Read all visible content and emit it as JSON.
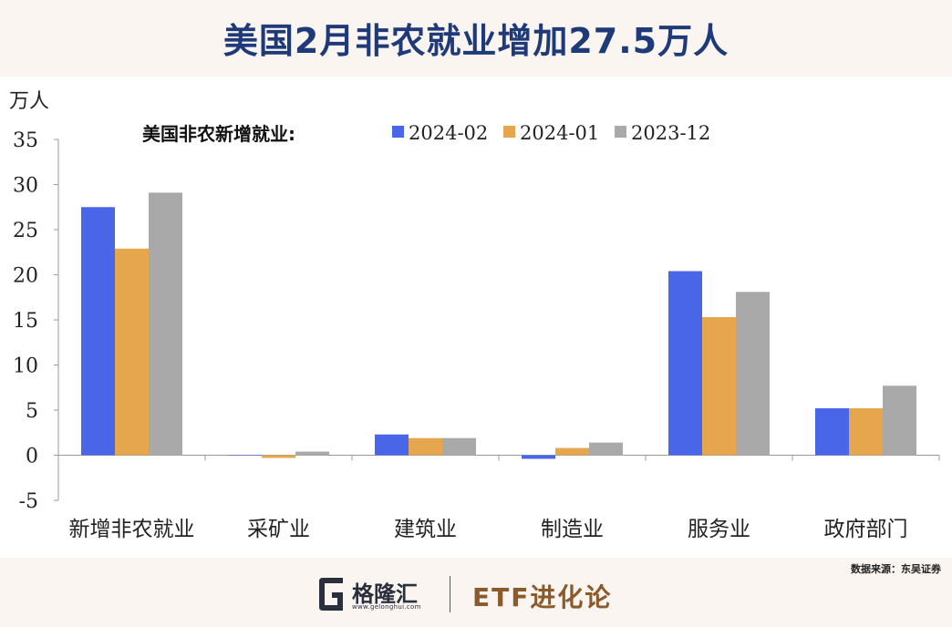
{
  "title": "美国2月非农就业增加27.5万人",
  "source": "数据来源：东吴证券",
  "footer": {
    "brand_name": "格隆汇",
    "brand_url": "www.gelonghui.com",
    "etf_label": "ETF进化论"
  },
  "chart_data": {
    "type": "bar",
    "ylabel": "万人",
    "legend_title": "美国非农新增就业:",
    "legend_position": "top",
    "ylim": [
      -5,
      35
    ],
    "yticks": [
      -5,
      0,
      5,
      10,
      15,
      20,
      25,
      30,
      35
    ],
    "grid": false,
    "categories": [
      "新增非农就业",
      "采矿业",
      "建筑业",
      "制造业",
      "服务业",
      "政府部门"
    ],
    "series": [
      {
        "name": "2024-02",
        "color": "#4a66e8",
        "values": [
          27.5,
          0.0,
          2.3,
          -0.4,
          20.4,
          5.2
        ]
      },
      {
        "name": "2024-01",
        "color": "#e6a64e",
        "values": [
          22.9,
          -0.3,
          1.9,
          0.8,
          15.3,
          5.2
        ]
      },
      {
        "name": "2023-12",
        "color": "#a9a9a9",
        "values": [
          29.1,
          0.4,
          1.9,
          1.4,
          18.1,
          7.7
        ]
      }
    ]
  }
}
